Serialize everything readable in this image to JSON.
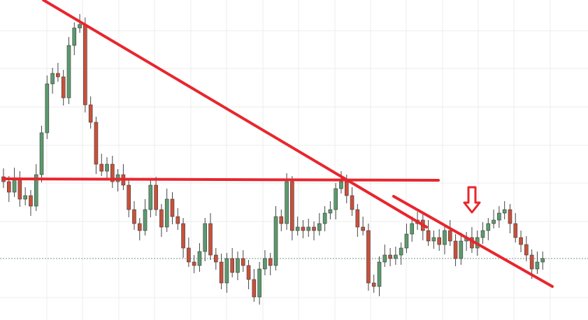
{
  "chart_data": {
    "type": "candlestick",
    "open": [
      205,
      198,
      183,
      203,
      173,
      178,
      163,
      208,
      268,
      338,
      353,
      348,
      318,
      393,
      418,
      423,
      308,
      283,
      223,
      213,
      223,
      198,
      208,
      193,
      158,
      138,
      128,
      158,
      193,
      158,
      133,
      173,
      148,
      138,
      103,
      83,
      78,
      98,
      138,
      93,
      83,
      53,
      88,
      68,
      88,
      78,
      58,
      33,
      73,
      88,
      78,
      148,
      138,
      198,
      128,
      133,
      128,
      133,
      128,
      138,
      153,
      158,
      188,
      198,
      178,
      158,
      133,
      128,
      53,
      48,
      83,
      93,
      88,
      93,
      103,
      123,
      138,
      143,
      128,
      113,
      118,
      108,
      128,
      113,
      88,
      113,
      118,
      103,
      118,
      128,
      138,
      143,
      153,
      158,
      138,
      118,
      108,
      93,
      73,
      83
    ],
    "high": [
      217,
      206,
      218,
      213,
      190,
      186,
      223,
      278,
      350,
      361,
      368,
      358,
      405,
      426,
      438,
      433,
      320,
      291,
      238,
      233,
      235,
      216,
      223,
      203,
      170,
      146,
      173,
      203,
      205,
      166,
      188,
      183,
      160,
      146,
      118,
      93,
      110,
      146,
      153,
      103,
      95,
      96,
      103,
      98,
      100,
      86,
      73,
      83,
      100,
      96,
      163,
      158,
      210,
      206,
      148,
      143,
      145,
      141,
      153,
      163,
      170,
      196,
      213,
      208,
      190,
      166,
      148,
      138,
      65,
      91,
      108,
      103,
      105,
      111,
      138,
      148,
      155,
      151,
      143,
      128,
      130,
      136,
      143,
      123,
      125,
      126,
      133,
      128,
      140,
      146,
      158,
      163,
      170,
      166,
      153,
      128,
      120,
      101,
      98,
      98
    ],
    "low": [
      189,
      169,
      176,
      162,
      164,
      149,
      156,
      197,
      259,
      324,
      341,
      307,
      309,
      379,
      411,
      297,
      274,
      209,
      206,
      202,
      189,
      184,
      186,
      147,
      129,
      114,
      121,
      147,
      149,
      119,
      126,
      137,
      129,
      89,
      76,
      67,
      69,
      84,
      86,
      72,
      44,
      39,
      61,
      57,
      69,
      44,
      26,
      22,
      64,
      64,
      71,
      127,
      129,
      114,
      121,
      117,
      119,
      114,
      121,
      127,
      144,
      144,
      181,
      167,
      149,
      119,
      121,
      42,
      39,
      34,
      76,
      77,
      79,
      79,
      96,
      112,
      129,
      114,
      106,
      102,
      99,
      94,
      106,
      77,
      79,
      99,
      96,
      92,
      109,
      114,
      131,
      132,
      144,
      124,
      111,
      97,
      84,
      59,
      66,
      72
    ],
    "close": [
      198,
      183,
      203,
      173,
      178,
      163,
      208,
      268,
      338,
      353,
      348,
      318,
      393,
      418,
      423,
      308,
      283,
      223,
      213,
      223,
      198,
      208,
      193,
      158,
      138,
      128,
      158,
      193,
      158,
      133,
      173,
      148,
      138,
      103,
      83,
      78,
      98,
      138,
      93,
      83,
      53,
      88,
      68,
      88,
      78,
      58,
      33,
      73,
      88,
      78,
      148,
      138,
      198,
      128,
      133,
      128,
      133,
      128,
      138,
      153,
      158,
      188,
      198,
      178,
      158,
      133,
      128,
      53,
      48,
      83,
      93,
      88,
      93,
      103,
      123,
      138,
      143,
      128,
      113,
      118,
      108,
      128,
      113,
      88,
      113,
      118,
      103,
      118,
      128,
      138,
      143,
      153,
      158,
      138,
      118,
      108,
      93,
      73,
      83,
      88
    ],
    "up_color": "#5b9a6d",
    "down_color": "#c9503a",
    "ylim": [
      0,
      458
    ],
    "price_line": 88
  }
}
